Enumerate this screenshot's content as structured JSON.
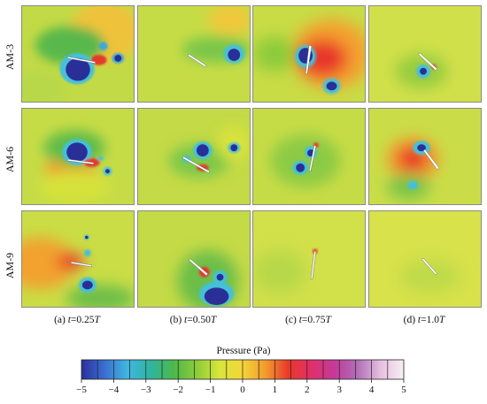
{
  "figure": {
    "row_labels": [
      "AM-3",
      "AM-6",
      "AM-9"
    ],
    "col_labels": [
      {
        "prefix": "(a) ",
        "t": "t",
        "mid": "=0.25",
        "T": "T"
      },
      {
        "prefix": "(b) ",
        "t": "t",
        "mid": "=0.50",
        "T": "T"
      },
      {
        "prefix": "(c) ",
        "t": "t",
        "mid": "=0.75",
        "T": "T"
      },
      {
        "prefix": "(d) ",
        "t": "t",
        "mid": "=1.0",
        "T": "T"
      }
    ],
    "colorbar": {
      "title": "Pressure (Pa)",
      "ticks": [
        "−5",
        "−4",
        "−3",
        "−2",
        "−1",
        "0",
        "1",
        "2",
        "3",
        "4",
        "5"
      ],
      "min": -5,
      "max": 5,
      "colors": [
        "#2b2f9c",
        "#3a6fd0",
        "#41b6e0",
        "#2fb4a0",
        "#4cb84a",
        "#8ccb3a",
        "#d8e63a",
        "#f3d53a",
        "#f39a2e",
        "#e8382a",
        "#e0306a",
        "#c43a9a",
        "#b070b8",
        "#e6c0e0",
        "#f7eef5"
      ]
    }
  }
}
